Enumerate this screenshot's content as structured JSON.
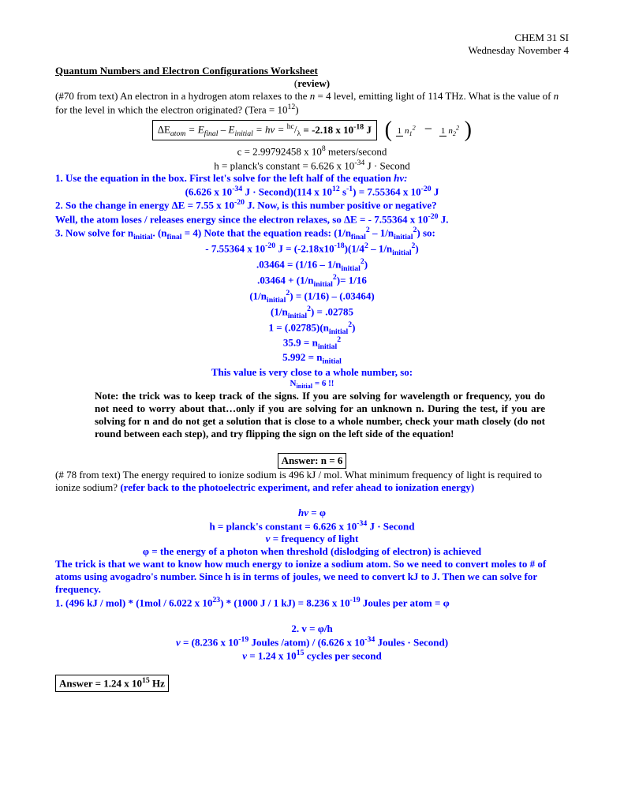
{
  "header": {
    "course": "CHEM 31 SI",
    "date": "Wednesday November 4"
  },
  "title": "Quantum Numbers and Electron Configurations Worksheet",
  "subtitle": "(review)",
  "q1": {
    "prompt": "(#70 from text) An electron in a hydrogen atom relaxes to the ",
    "n_eq": "n",
    "prompt2": " = 4 level, emitting light of 114 THz.  What is the value of ",
    "prompt3": " for the level in which the electron originated? (Tera = 10",
    "tera_exp": "12",
    "prompt4": ")",
    "eq_left": "∆E",
    "eq_atom": "atom",
    "eq_eq": " = E",
    "eq_final": "final",
    "eq_minus": " – E",
    "eq_initial": "initial",
    "eq_hv": " = hv = ",
    "eq_hc": "hc",
    "eq_slash": "/",
    "eq_lambda": "λ",
    "eq_val": " = -2.18 x 10",
    "eq_exp": "-18",
    "eq_j": " J",
    "frac_1a": "1",
    "frac_1b": "n₁²",
    "frac_2a": "1",
    "frac_2b": "n₂²",
    "c_line": "c = 2.99792458 x 10",
    "c_exp": "8",
    "c_unit": " meters/second",
    "h_line1": "h = planck's constant = 6.626 x 10",
    "h_exp": "-34",
    "h_unit": " J · Second",
    "s1": "1. Use the equation in the box. First let's solve for the left half of the equation ",
    "s1_hv": "hv:",
    "s2a": "(6.626 x 10",
    "s2b": " J · Second)(114 x 10",
    "s2c": " s",
    "s2d": ") = 7.55364 x 10",
    "s2e": " J",
    "s3": "2. So the change in energy ∆E = 7.55 x 10",
    "s3b": " J.  Now, is this number positive or negative?",
    "s4": "Well, the atom loses / releases energy since the electron relaxes, so ∆E = - 7.55364 x 10",
    "s4b": " J.",
    "s5a": "3. Now solve for n",
    "s5_init": "initial",
    "s5b": ". (n",
    "s5_final": "final",
    "s5c": " = 4) Note that the equation reads: (1/n",
    "s5d": " – 1/n",
    "s5e": ") so:",
    "s6a": "- 7.55364 x 10",
    "s6b": " J = (-2.18x10",
    "s6c": ")(1/4",
    "s6d": " – 1/n",
    "s6e": ")",
    "s7": ".03464 = (1/16 – 1/n",
    "s7b": ")",
    "s8": ".03464 + (1/n",
    "s8b": ")= 1/16",
    "s9": "(1/n",
    "s9b": ") = (1/16) – (.03464)",
    "s10": "(1/n",
    "s10b": ") = .02785",
    "s11": "1 = (.02785)(n",
    "s11b": ")",
    "s12": "35.9 = n",
    "s13": "5.992 = n",
    "s14": "This value is very close to a whole number, so:",
    "s15a": "N",
    "s15b": " = 6  !!",
    "note": "Note: the trick was to keep track of the signs.  If you are solving for wavelength or frequency, you do not need to worry about that…only if you are solving for an unknown n.  During the test, if you are solving for n and do not get a solution that is close to a whole number, check your math closely (do not round between each step), and try flipping the sign on the left side of the equation!",
    "ans": "Answer: n = 6"
  },
  "q2": {
    "prompt": "(# 78 from text) The energy required to ionize sodium is 496 kJ / mol. What minimum frequency of light is required to ionize sodium? ",
    "refer": "(refer back to the photoelectric experiment, and refer ahead to ionization energy)",
    "e1": "hv = φ",
    "e2a": "h = planck's constant = 6.626 x 10",
    "e2b": " J · Second",
    "e3": "v",
    "e3b": " = frequency of light",
    "e4": "φ = the energy of a photon when threshold (dislodging of electron) is achieved",
    "trick": "The trick is that we want to know how much energy to ionize a sodium atom.  So we need to convert moles to # of atoms using avogadro's number.  Since h is in terms of joules, we need to convert kJ to J.  Then we can solve for frequency.",
    "c1a": " 1. (496 kJ / mol) * (1mol / 6.022 x 10",
    "c1b": ") * (1000 J / 1 kJ) =  8.236 x 10",
    "c1c": " Joules per atom = φ",
    "c2": "2. v = φ/h",
    "c3a": "v",
    "c3b": " = (8.236 x 10",
    "c3c": " Joules /atom) / (6.626 x 10",
    "c3d": " Joules · Second)",
    "c4a": "v",
    "c4b": " = 1.24 x 10",
    "c4c": " cycles per second",
    "ans_a": "Answer = 1.24 x 10",
    "ans_b": " Hz"
  }
}
